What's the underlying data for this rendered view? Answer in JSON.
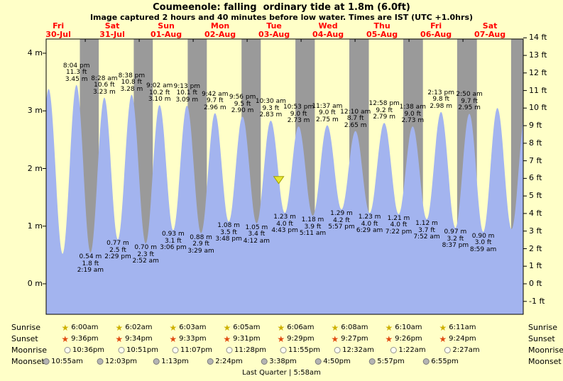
{
  "colors": {
    "background": "#ffffc8",
    "night_bar": "#9a9a9a",
    "tide_fill": "#a3b4ef",
    "day_label_red": "#ff0000",
    "marker_yellow": "#e8e632",
    "marker_outline": "#a0a000",
    "sunrise_star": "#cdb100",
    "sunset_star": "#e04a10",
    "moonrise_fill": "#fffff0",
    "moonrise_border": "#909090",
    "moonset_fill": "#b4b4b4",
    "moonset_border": "#7a7a7a"
  },
  "chart_data": {
    "type": "area",
    "title": "Coumeenole: falling  ordinary tide at 1.8m (6.0ft)",
    "subtitle": "Image captured 2 hours and 40 minutes before low water. Times are IST (UTC +1.0hrs)",
    "x_origin": "Fri 30-Jul 00:00",
    "x_range_hours": [
      6.6,
      218.8
    ],
    "y_range_m": [
      -0.53,
      4.25
    ],
    "grid": false,
    "days": [
      {
        "dow": "Fri",
        "date": "30-Jul"
      },
      {
        "dow": "Sat",
        "date": "31-Jul"
      },
      {
        "dow": "Sun",
        "date": "01-Aug"
      },
      {
        "dow": "Mon",
        "date": "02-Aug"
      },
      {
        "dow": "Tue",
        "date": "03-Aug"
      },
      {
        "dow": "Wed",
        "date": "04-Aug"
      },
      {
        "dow": "Thu",
        "date": "05-Aug"
      },
      {
        "dow": "Fri",
        "date": "06-Aug"
      },
      {
        "dow": "Sat",
        "date": "07-Aug"
      }
    ],
    "left_axis": [
      {
        "label": "4 m",
        "value": 4
      },
      {
        "label": "3 m",
        "value": 3
      },
      {
        "label": "2 m",
        "value": 2
      },
      {
        "label": "1 m",
        "value": 1
      },
      {
        "label": "0 m",
        "value": 0
      }
    ],
    "right_axis": [
      {
        "label": "14 ft",
        "value": 14
      },
      {
        "label": "13 ft",
        "value": 13
      },
      {
        "label": "12 ft",
        "value": 12
      },
      {
        "label": "11 ft",
        "value": 11
      },
      {
        "label": "10 ft",
        "value": 10
      },
      {
        "label": "9 ft",
        "value": 9
      },
      {
        "label": "8 ft",
        "value": 8
      },
      {
        "label": "7 ft",
        "value": 7
      },
      {
        "label": "6 ft",
        "value": 6
      },
      {
        "label": "5 ft",
        "value": 5
      },
      {
        "label": "4 ft",
        "value": 4
      },
      {
        "label": "3 ft",
        "value": 3
      },
      {
        "label": "2 ft",
        "value": 2
      },
      {
        "label": "1 ft",
        "value": 1
      },
      {
        "label": "0 ft",
        "value": 0
      },
      {
        "label": "-1 ft",
        "value": -1
      }
    ],
    "tide_events": [
      {
        "type": "high",
        "t": 20.07,
        "h": 3.45,
        "time": "8:04 pm",
        "ft": "11.3 ft",
        "m": "3.45 m"
      },
      {
        "type": "low",
        "t": 26.32,
        "h": 0.54,
        "time": "2:19 am",
        "ft": "1.8 ft",
        "m": "0.54 m"
      },
      {
        "type": "high",
        "t": 32.47,
        "h": 3.23,
        "time": "8:28 am",
        "ft": "10.6 ft",
        "m": "3.23 m"
      },
      {
        "type": "low",
        "t": 38.48,
        "h": 0.77,
        "time": "2:29 pm",
        "ft": "2.5 ft",
        "m": "0.77 m"
      },
      {
        "type": "high",
        "t": 44.63,
        "h": 3.28,
        "time": "8:38 pm",
        "ft": "10.8 ft",
        "m": "3.28 m"
      },
      {
        "type": "low",
        "t": 50.87,
        "h": 0.7,
        "time": "2:52 am",
        "ft": "2.3 ft",
        "m": "0.70 m"
      },
      {
        "type": "high",
        "t": 57.03,
        "h": 3.1,
        "time": "9:02 am",
        "ft": "10.2 ft",
        "m": "3.10 m"
      },
      {
        "type": "low",
        "t": 63.1,
        "h": 0.93,
        "time": "3:06 pm",
        "ft": "3.1 ft",
        "m": "0.93 m"
      },
      {
        "type": "high",
        "t": 69.22,
        "h": 3.09,
        "time": "9:13 pm",
        "ft": "10.1 ft",
        "m": "3.09 m"
      },
      {
        "type": "low",
        "t": 75.48,
        "h": 0.88,
        "time": "3:29 am",
        "ft": "2.9 ft",
        "m": "0.88 m"
      },
      {
        "type": "high",
        "t": 81.7,
        "h": 2.96,
        "time": "9:42 am",
        "ft": "9.7 ft",
        "m": "2.96 m"
      },
      {
        "type": "low",
        "t": 87.8,
        "h": 1.08,
        "time": "3:48 pm",
        "ft": "3.5 ft",
        "m": "1.08 m"
      },
      {
        "type": "high",
        "t": 93.93,
        "h": 2.9,
        "time": "9:56 pm",
        "ft": "9.5 ft",
        "m": "2.90 m"
      },
      {
        "type": "low",
        "t": 100.2,
        "h": 1.05,
        "time": "4:12 am",
        "ft": "3.4 ft",
        "m": "1.05 m"
      },
      {
        "type": "high",
        "t": 106.5,
        "h": 2.83,
        "time": "10:30 am",
        "ft": "9.3 ft",
        "m": "2.83 m"
      },
      {
        "type": "low",
        "t": 112.72,
        "h": 1.23,
        "time": "4:43 pm",
        "ft": "4.0 ft",
        "m": "1.23 m"
      },
      {
        "type": "high",
        "t": 118.88,
        "h": 2.73,
        "time": "10:53 pm",
        "ft": "9.0 ft",
        "m": "2.73 m"
      },
      {
        "type": "low",
        "t": 125.18,
        "h": 1.18,
        "time": "5:11 am",
        "ft": "3.9 ft",
        "m": "1.18 m"
      },
      {
        "type": "high",
        "t": 131.62,
        "h": 2.75,
        "time": "11:37 am",
        "ft": "9.0 ft",
        "m": "2.75 m"
      },
      {
        "type": "low",
        "t": 137.95,
        "h": 1.29,
        "time": "5:57 pm",
        "ft": "4.2 ft",
        "m": "1.29 m"
      },
      {
        "type": "high",
        "t": 144.17,
        "h": 2.65,
        "time": "12:10 am",
        "ft": "8.7 ft",
        "m": "2.65 m"
      },
      {
        "type": "low",
        "t": 150.48,
        "h": 1.23,
        "time": "6:29 am",
        "ft": "4.0 ft",
        "m": "1.23 m"
      },
      {
        "type": "high",
        "t": 156.97,
        "h": 2.79,
        "time": "12:58 pm",
        "ft": "9.2 ft",
        "m": "2.79 m"
      },
      {
        "type": "low",
        "t": 163.37,
        "h": 1.21,
        "time": "7:22 pm",
        "ft": "4.0 ft",
        "m": "1.21 m"
      },
      {
        "type": "high",
        "t": 169.63,
        "h": 2.73,
        "time": "1:38 am",
        "ft": "9.0 ft",
        "m": "2.73 m"
      },
      {
        "type": "low",
        "t": 175.87,
        "h": 1.12,
        "time": "7:52 am",
        "ft": "3.7 ft",
        "m": "1.12 m"
      },
      {
        "type": "high",
        "t": 182.22,
        "h": 2.98,
        "time": "2:13 pm",
        "ft": "9.8 ft",
        "m": "2.98 m"
      },
      {
        "type": "low",
        "t": 188.62,
        "h": 0.97,
        "time": "8:37 pm",
        "ft": "3.2 ft",
        "m": "0.97 m"
      },
      {
        "type": "high",
        "t": 194.83,
        "h": 2.95,
        "time": "2:50 am",
        "ft": "9.7 ft",
        "m": "2.95 m"
      },
      {
        "type": "low",
        "t": 200.98,
        "h": 0.9,
        "time": "8:59 am",
        "ft": "3.0 ft",
        "m": "0.90 m"
      }
    ],
    "edge_curve": {
      "pre": [
        {
          "t": 1.5,
          "h": 0.45
        },
        {
          "t": 7.7,
          "h": 3.38
        },
        {
          "t": 13.9,
          "h": 0.52
        }
      ],
      "post": [
        {
          "t": 207.3,
          "h": 3.05
        },
        {
          "t": 213.6,
          "h": 0.95
        },
        {
          "t": 219.9,
          "h": 3.0
        }
      ]
    },
    "current_level_marker": {
      "t": 110.05,
      "h": 1.8
    }
  },
  "almanac": {
    "rows": [
      {
        "id": "sunrise",
        "label": "Sunrise",
        "icon": "sunrise-star-icon",
        "times": [
          "6:00am",
          "6:02am",
          "6:03am",
          "6:05am",
          "6:06am",
          "6:08am",
          "6:10am",
          "6:11am"
        ]
      },
      {
        "id": "sunset",
        "label": "Sunset",
        "icon": "sunset-star-icon",
        "times": [
          "9:36pm",
          "9:34pm",
          "9:33pm",
          "9:31pm",
          "9:29pm",
          "9:27pm",
          "9:26pm",
          "9:24pm"
        ]
      },
      {
        "id": "moonrise",
        "label": "Moonrise",
        "icon": "moonrise-moon-icon",
        "times": [
          "10:36pm",
          "10:51pm",
          "11:07pm",
          "11:28pm",
          "11:55pm",
          "12:32am",
          "1:22am",
          "2:27am"
        ]
      },
      {
        "id": "moonset",
        "label": "Moonset",
        "icon": "moonset-moon-icon",
        "times": [
          "10:55am",
          "12:03pm",
          "1:13pm",
          "2:24pm",
          "3:38pm",
          "4:50pm",
          "5:57pm",
          "6:55pm"
        ]
      }
    ],
    "footer": "Last Quarter | 5:58am"
  }
}
